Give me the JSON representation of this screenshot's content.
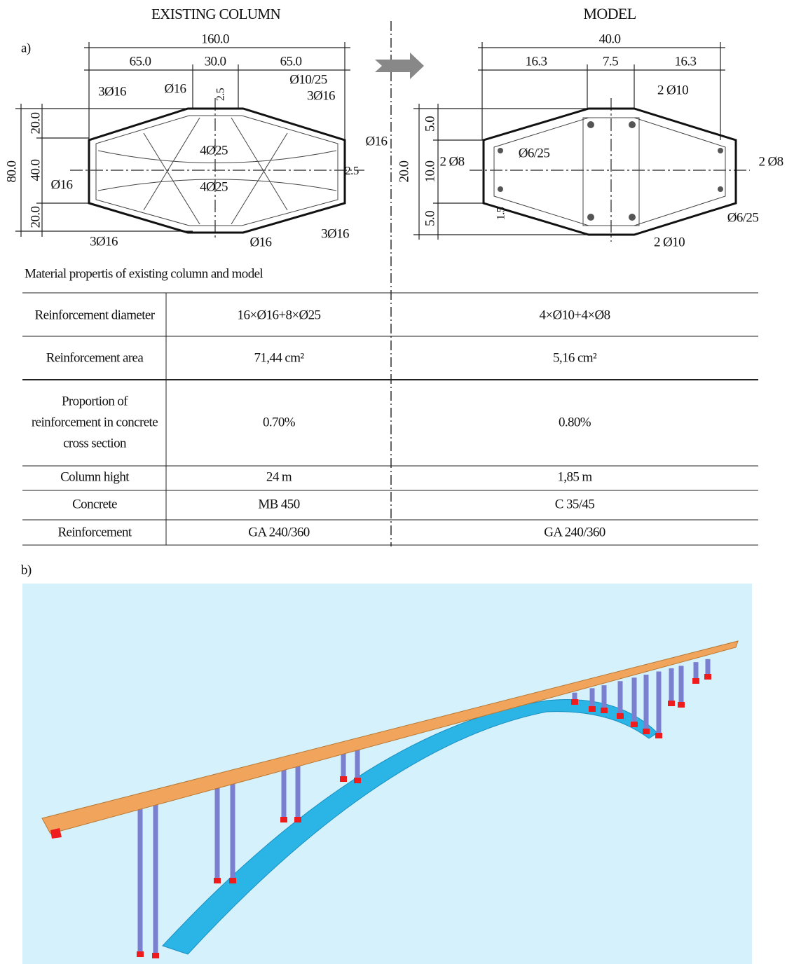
{
  "panel_a": {
    "label": "a)",
    "left_title": "EXISTING COLUMN",
    "right_title": "MODEL",
    "existing_column": {
      "total_width": "160.0",
      "widths": [
        "65.0",
        "30.0",
        "65.0"
      ],
      "total_height": "80.0",
      "heights": [
        "20.0",
        "40.0",
        "20.0"
      ],
      "covers": [
        "2.5",
        "2.5"
      ],
      "rebar_labels": [
        "3Ø16",
        "Ø16",
        "Ø10/25",
        "3Ø16",
        "Ø16",
        "4Ø25",
        "Ø16",
        "4Ø25",
        "3Ø16",
        "Ø16",
        "3Ø16"
      ]
    },
    "model": {
      "total_width": "40.0",
      "widths": [
        "16.3",
        "7.5",
        "16.3"
      ],
      "total_height": "20.0",
      "heights": [
        "5.0",
        "10.0",
        "5.0"
      ],
      "cover": "1.5",
      "rebar_labels": [
        "2 Ø10",
        "Ø6/25",
        "2 Ø8",
        "2 Ø8",
        "Ø6/25",
        "2 Ø10"
      ]
    },
    "caption": "Material propertis of existing column and model",
    "table": {
      "rows": [
        [
          "Reinforcement diameter",
          "16×Ø16+8×Ø25",
          "4×Ø10+4×Ø8"
        ],
        [
          "Reinforcement area",
          "71,44 cm²",
          "5,16 cm²"
        ],
        [
          [
            "Proportion of",
            "reinforcement in concrete",
            "cross section"
          ],
          "0.70%",
          "0.80%"
        ],
        [
          "Column hight",
          "24 m",
          "1,85 m"
        ],
        [
          "Concrete",
          "MB 450",
          "C 35/45"
        ],
        [
          "Reinforcement",
          "GA 240/360",
          "GA 240/360"
        ]
      ]
    }
  },
  "panel_b": {
    "label": "b)"
  }
}
